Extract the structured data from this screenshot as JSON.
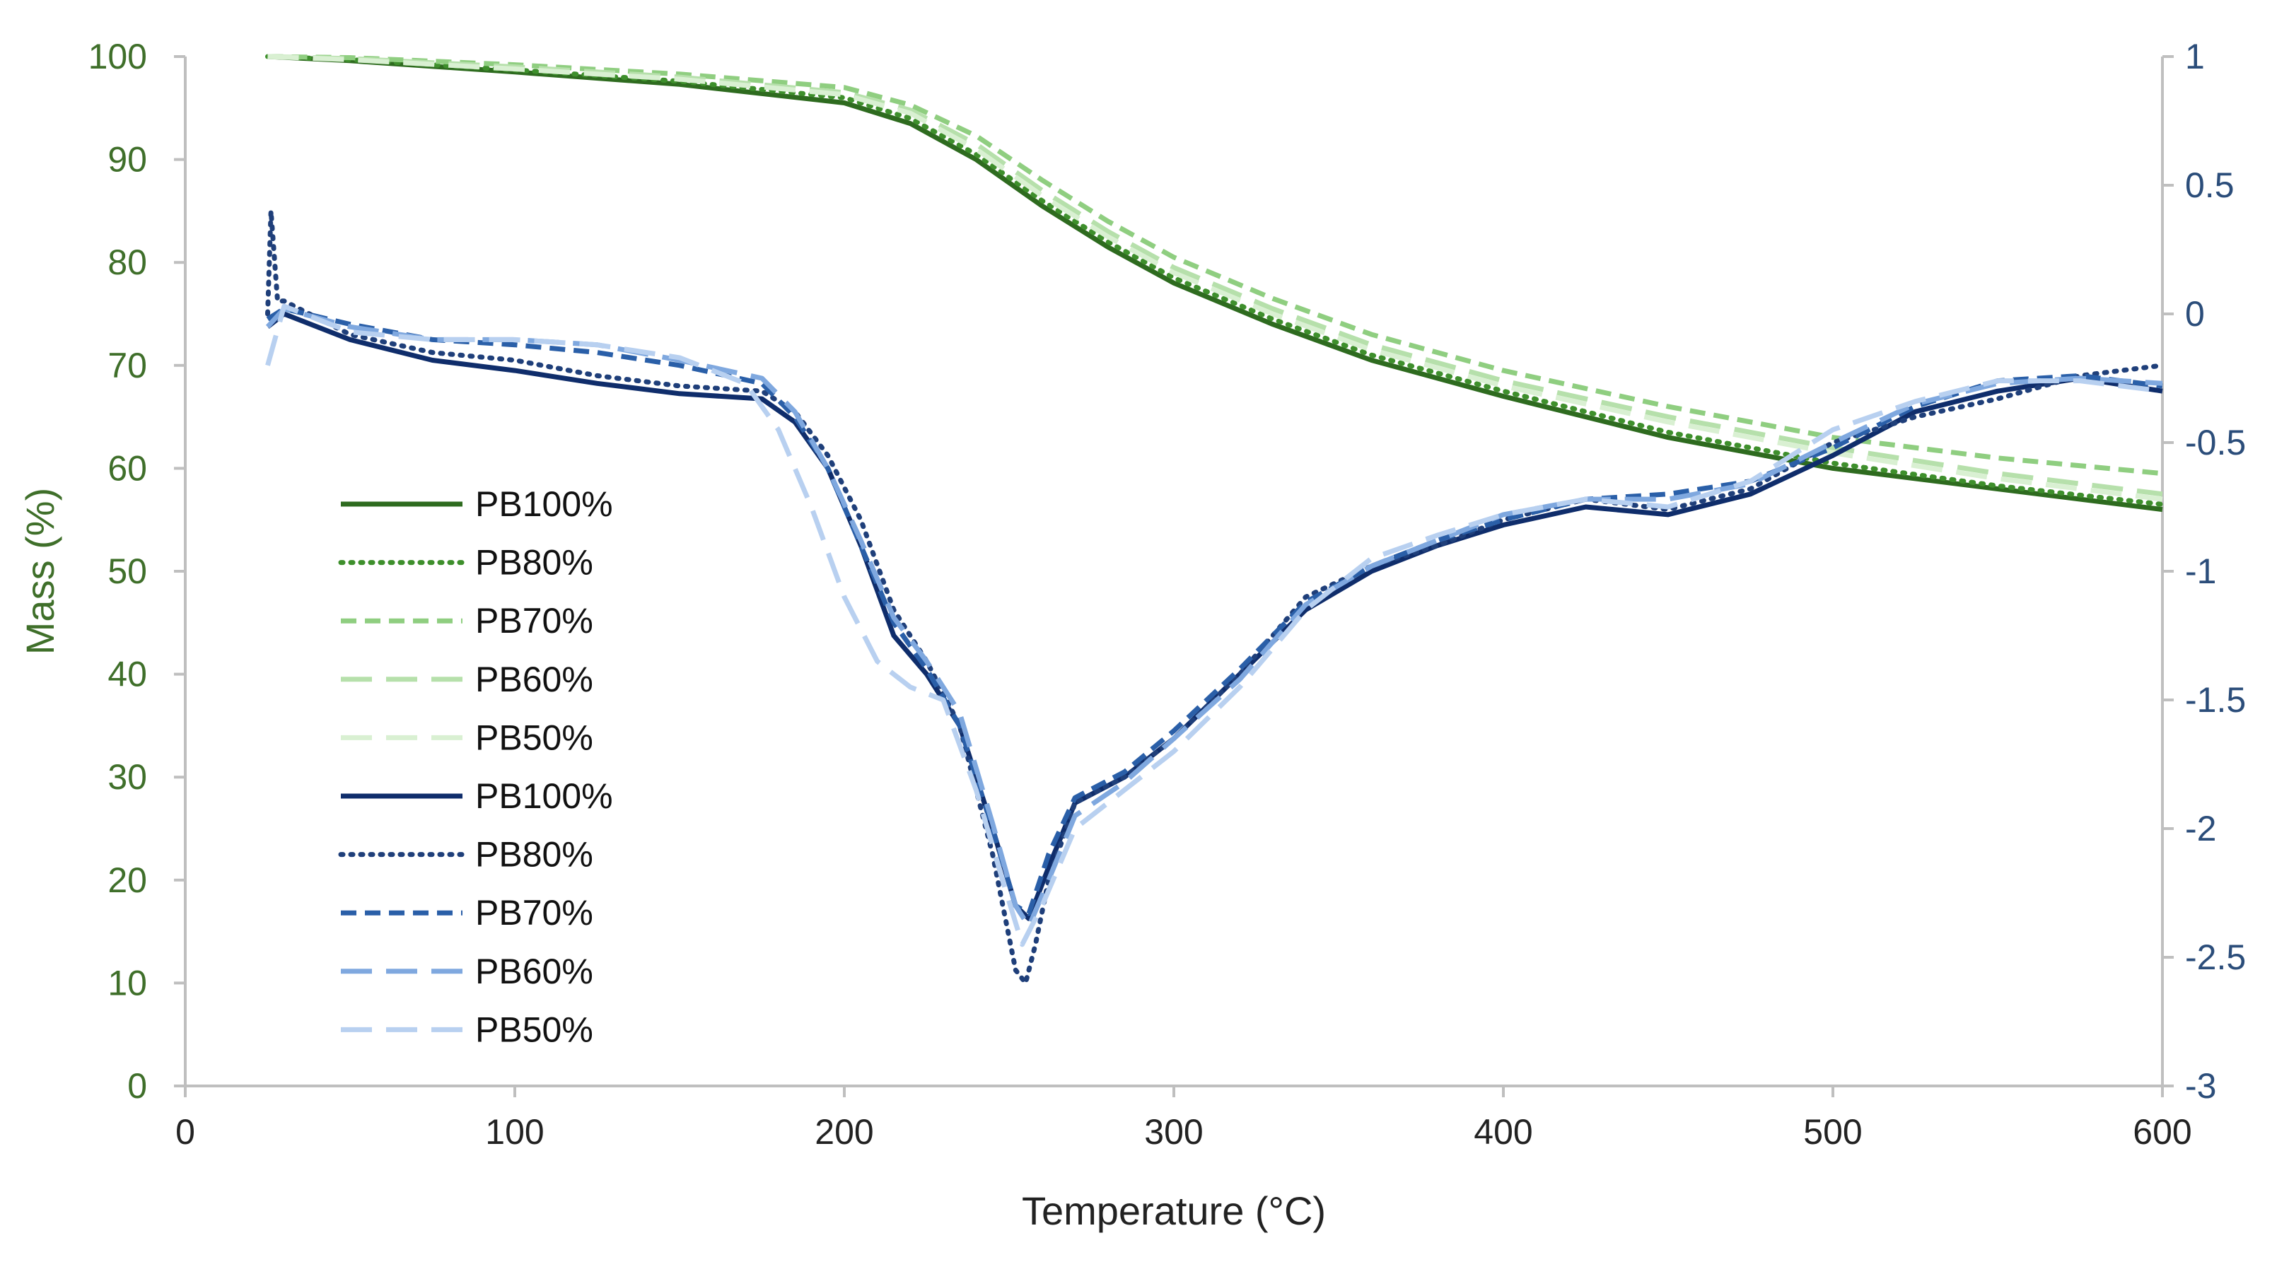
{
  "chart_data": {
    "type": "line",
    "title": "",
    "xlabel": "Temperature (°C)",
    "ylabel_left": "Mass (%)",
    "ylabel_right": "",
    "xlim": [
      0,
      600
    ],
    "ylim_left": [
      0,
      100
    ],
    "ylim_right": [
      -3,
      1
    ],
    "x_ticks": [
      "0",
      "100",
      "200",
      "300",
      "400",
      "500",
      "600"
    ],
    "y_left_ticks": [
      "0",
      "10",
      "20",
      "30",
      "40",
      "50",
      "60",
      "70",
      "80",
      "90",
      "100"
    ],
    "y_right_ticks": [
      "-3",
      "-2.5",
      "-2",
      "-1.5",
      "-1",
      "-0.5",
      "0",
      "0.5",
      "1"
    ],
    "grid": false,
    "legend_position": "center-left",
    "series": [
      {
        "name": "PB100%",
        "axis": "left",
        "color": "#2e6b1f",
        "dash": "solid",
        "x": [
          25,
          50,
          100,
          150,
          200,
          220,
          240,
          260,
          280,
          300,
          330,
          360,
          400,
          450,
          500,
          550,
          600
        ],
        "y": [
          100,
          99.6,
          98.5,
          97.3,
          95.5,
          93.5,
          90,
          85.5,
          81.5,
          78,
          74,
          70.5,
          67,
          63,
          60,
          58,
          56
        ]
      },
      {
        "name": "PB80%",
        "axis": "left",
        "color": "#3e8f2c",
        "dash": "dotted",
        "x": [
          25,
          50,
          100,
          150,
          200,
          220,
          240,
          260,
          280,
          300,
          330,
          360,
          400,
          450,
          500,
          550,
          600
        ],
        "y": [
          100,
          99.7,
          98.7,
          97.6,
          96,
          94,
          90.5,
          86,
          82,
          78.5,
          74.5,
          71,
          67.5,
          63.5,
          60.5,
          58.3,
          56.5
        ]
      },
      {
        "name": "PB70%",
        "axis": "left",
        "color": "#8fce80",
        "dash": "dashed",
        "x": [
          25,
          50,
          100,
          150,
          200,
          220,
          240,
          260,
          280,
          300,
          330,
          360,
          400,
          450,
          500,
          550,
          600
        ],
        "y": [
          100,
          99.9,
          99.2,
          98.3,
          97,
          95.3,
          92.3,
          88,
          84,
          80.5,
          76.5,
          73,
          69.5,
          66,
          63,
          61,
          59.5
        ]
      },
      {
        "name": "PB60%",
        "axis": "left",
        "color": "#b6e0ab",
        "dash": "longdash",
        "x": [
          25,
          50,
          100,
          150,
          200,
          220,
          240,
          260,
          280,
          300,
          330,
          360,
          400,
          450,
          500,
          550,
          600
        ],
        "y": [
          100,
          99.8,
          99,
          98,
          96.5,
          94.8,
          91.5,
          87,
          83,
          79.5,
          75.5,
          72,
          68.5,
          65,
          62,
          59.5,
          57.5
        ]
      },
      {
        "name": "PB50%",
        "axis": "left",
        "color": "#d9f0d2",
        "dash": "longdash",
        "x": [
          25,
          50,
          100,
          150,
          200,
          220,
          240,
          260,
          280,
          300,
          330,
          360,
          400,
          450,
          500,
          550,
          600
        ],
        "y": [
          100,
          99.7,
          98.8,
          97.8,
          96.3,
          94.5,
          91,
          86.5,
          82.5,
          79,
          75,
          71.5,
          68,
          64.5,
          61.5,
          59,
          57
        ]
      },
      {
        "name": "PB100%",
        "axis": "right",
        "color": "#0f2d6b",
        "dash": "solid",
        "x": [
          25,
          30,
          50,
          75,
          100,
          125,
          150,
          175,
          185,
          195,
          205,
          215,
          225,
          235,
          245,
          252,
          256,
          262,
          270,
          285,
          300,
          320,
          340,
          360,
          380,
          400,
          425,
          450,
          475,
          500,
          525,
          550,
          575,
          600
        ],
        "y": [
          -0.05,
          0,
          -0.1,
          -0.18,
          -0.22,
          -0.27,
          -0.31,
          -0.33,
          -0.42,
          -0.6,
          -0.9,
          -1.25,
          -1.4,
          -1.6,
          -2.0,
          -2.3,
          -2.35,
          -2.15,
          -1.9,
          -1.8,
          -1.65,
          -1.4,
          -1.15,
          -1.0,
          -0.9,
          -0.82,
          -0.75,
          -0.78,
          -0.7,
          -0.55,
          -0.38,
          -0.3,
          -0.25,
          -0.3
        ]
      },
      {
        "name": "PB80%",
        "axis": "right",
        "color": "#1f3f7a",
        "dash": "dotted",
        "x": [
          25,
          26,
          28,
          30,
          50,
          75,
          100,
          125,
          150,
          175,
          185,
          195,
          205,
          215,
          225,
          235,
          245,
          252,
          255,
          258,
          262,
          270,
          285,
          300,
          320,
          340,
          360,
          380,
          400,
          425,
          450,
          475,
          500,
          525,
          550,
          575,
          600
        ],
        "y": [
          0,
          0.4,
          0.05,
          0.05,
          -0.08,
          -0.15,
          -0.18,
          -0.24,
          -0.28,
          -0.3,
          -0.38,
          -0.55,
          -0.8,
          -1.15,
          -1.35,
          -1.6,
          -2.1,
          -2.55,
          -2.6,
          -2.45,
          -2.2,
          -1.9,
          -1.8,
          -1.65,
          -1.4,
          -1.1,
          -0.98,
          -0.9,
          -0.8,
          -0.72,
          -0.76,
          -0.68,
          -0.5,
          -0.4,
          -0.33,
          -0.24,
          -0.2
        ]
      },
      {
        "name": "PB70%",
        "axis": "right",
        "color": "#2a5fa8",
        "dash": "dashed",
        "x": [
          25,
          30,
          50,
          75,
          100,
          125,
          150,
          175,
          185,
          195,
          205,
          215,
          225,
          235,
          245,
          252,
          256,
          262,
          270,
          285,
          300,
          320,
          340,
          360,
          380,
          400,
          425,
          450,
          475,
          500,
          525,
          550,
          575,
          600
        ],
        "y": [
          -0.02,
          0.02,
          -0.04,
          -0.1,
          -0.12,
          -0.15,
          -0.2,
          -0.27,
          -0.4,
          -0.6,
          -0.9,
          -1.2,
          -1.38,
          -1.6,
          -2.0,
          -2.3,
          -2.33,
          -2.1,
          -1.88,
          -1.78,
          -1.62,
          -1.38,
          -1.12,
          -0.98,
          -0.88,
          -0.8,
          -0.72,
          -0.7,
          -0.65,
          -0.52,
          -0.36,
          -0.26,
          -0.24,
          -0.28
        ]
      },
      {
        "name": "PB60%",
        "axis": "right",
        "color": "#7fa8df",
        "dash": "longdash",
        "x": [
          25,
          30,
          50,
          75,
          100,
          125,
          150,
          175,
          185,
          195,
          205,
          215,
          225,
          235,
          245,
          252,
          256,
          262,
          270,
          285,
          300,
          320,
          340,
          360,
          380,
          400,
          425,
          450,
          475,
          500,
          525,
          550,
          575,
          600
        ],
        "y": [
          -0.05,
          0.02,
          -0.05,
          -0.1,
          -0.1,
          -0.12,
          -0.18,
          -0.25,
          -0.38,
          -0.6,
          -0.88,
          -1.18,
          -1.35,
          -1.55,
          -1.98,
          -2.3,
          -2.38,
          -2.2,
          -1.95,
          -1.82,
          -1.65,
          -1.42,
          -1.13,
          -0.98,
          -0.88,
          -0.78,
          -0.72,
          -0.72,
          -0.66,
          -0.5,
          -0.35,
          -0.27,
          -0.25,
          -0.27
        ]
      },
      {
        "name": "PB50%",
        "axis": "right",
        "color": "#b8d0f0",
        "dash": "longdash",
        "x": [
          25,
          30,
          50,
          75,
          100,
          125,
          150,
          170,
          180,
          190,
          200,
          210,
          220,
          230,
          240,
          248,
          254,
          260,
          270,
          285,
          300,
          320,
          340,
          360,
          380,
          400,
          425,
          450,
          475,
          500,
          525,
          550,
          575,
          600
        ],
        "y": [
          -0.2,
          0.03,
          -0.07,
          -0.1,
          -0.1,
          -0.12,
          -0.17,
          -0.27,
          -0.45,
          -0.75,
          -1.1,
          -1.35,
          -1.45,
          -1.5,
          -1.85,
          -2.2,
          -2.45,
          -2.3,
          -2.0,
          -1.85,
          -1.7,
          -1.45,
          -1.15,
          -0.95,
          -0.86,
          -0.78,
          -0.72,
          -0.75,
          -0.65,
          -0.45,
          -0.34,
          -0.26,
          -0.26,
          -0.3
        ]
      }
    ]
  }
}
